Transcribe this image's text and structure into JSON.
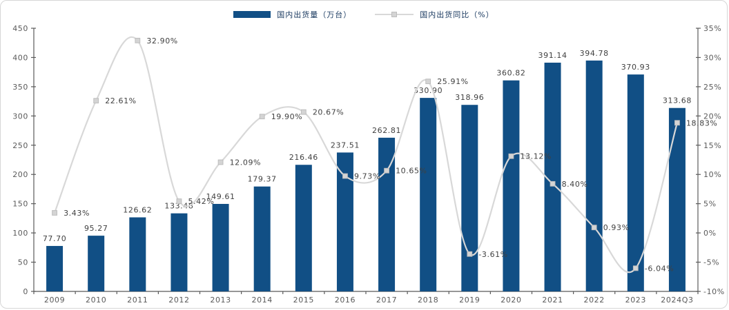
{
  "legend": {
    "bar_series_label": "国内出货量（万台）",
    "line_series_label": "国内出货同比（%）"
  },
  "colors": {
    "bar": "#114f85",
    "line": "#d8d8d8",
    "marker_fill": "#d4d4d4",
    "marker_stroke": "#bdbdbd",
    "axis_line": "#595959",
    "axis_label": "#595959",
    "data_label": "#404040",
    "legend_text": "#17375e",
    "frame_border": "#d6d6d6"
  },
  "chart_data": {
    "type": "bar",
    "subtype": "bar-with-line-overlay",
    "title": "",
    "xlabel": "",
    "ylabel": "",
    "grid": false,
    "legend_position": "top-center",
    "categories": [
      "2009",
      "2010",
      "2011",
      "2012",
      "2013",
      "2014",
      "2015",
      "2016",
      "2017",
      "2018",
      "2019",
      "2020",
      "2021",
      "2022",
      "2023",
      "2024Q3"
    ],
    "series": [
      {
        "name": "国内出货量（万台）",
        "type": "bar",
        "axis": "left",
        "color": "#114f85",
        "values": [
          77.7,
          95.27,
          126.62,
          133.48,
          149.61,
          179.37,
          216.46,
          237.51,
          262.81,
          330.9,
          318.96,
          360.82,
          391.14,
          394.78,
          370.93,
          313.68
        ],
        "labels": [
          "77.70",
          "95.27",
          "126.62",
          "133.48",
          "149.61",
          "179.37",
          "216.46",
          "237.51",
          "262.81",
          "330.90",
          "318.96",
          "360.82",
          "391.14",
          "394.78",
          "370.93",
          "313.68"
        ]
      },
      {
        "name": "国内出货同比（%）",
        "type": "line",
        "smooth": true,
        "marker": "square",
        "axis": "right",
        "color": "#d8d8d8",
        "values": [
          3.43,
          22.61,
          32.9,
          5.42,
          12.09,
          19.9,
          20.67,
          9.73,
          10.65,
          25.91,
          -3.61,
          13.12,
          8.4,
          0.93,
          -6.04,
          18.83
        ],
        "labels": [
          "3.43%",
          "22.61%",
          "32.90%",
          "5.42%",
          "12.09%",
          "19.90%",
          "20.67%",
          "9.73%",
          "10.65%",
          "25.91%",
          "-3.61%",
          "13.12%",
          "8.40%",
          "0.93%",
          "-6.04%",
          "18.83%"
        ]
      }
    ],
    "left_axis": {
      "min": 0,
      "max": 450,
      "step": 50,
      "ticks": [
        "0",
        "50",
        "100",
        "150",
        "200",
        "250",
        "300",
        "350",
        "400",
        "450"
      ]
    },
    "right_axis": {
      "min": -10,
      "max": 35,
      "step": 5,
      "ticks": [
        "-10%",
        "-5%",
        "0%",
        "5%",
        "10%",
        "15%",
        "20%",
        "25%",
        "30%",
        "35%"
      ]
    }
  }
}
